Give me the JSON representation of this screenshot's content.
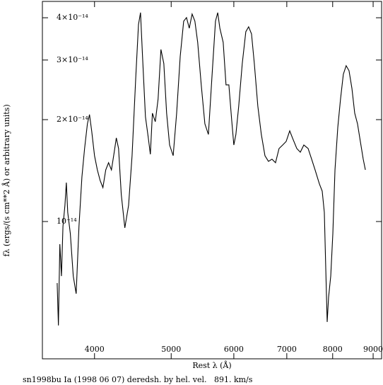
{
  "chart_data": {
    "type": "line",
    "xlabel": "Rest λ (Å)",
    "ylabel": "fλ (ergs/(s cm**2 Å) or arbitrary units)",
    "caption": "sn1998bu Ia (1998 06 07) deredsh. by hel. vel.   891. km/s",
    "xscale": "log",
    "yscale": "log",
    "xlim": [
      3437,
      9224
    ],
    "ylim": [
      3.93e-15,
      4.47e-14
    ],
    "xticks": [
      4000,
      5000,
      6000,
      7000,
      8000,
      9000
    ],
    "yticks": [
      {
        "value": 1e-14,
        "label": "10⁻¹⁴"
      },
      {
        "value": 2e-14,
        "label": "2×10⁻¹⁴"
      },
      {
        "value": 3e-14,
        "label": "3×10⁻¹⁴"
      },
      {
        "value": 4e-14,
        "label": "4×10⁻¹⁴"
      }
    ],
    "x": [
      3588,
      3601,
      3616,
      3633,
      3649,
      3670,
      3685,
      3700,
      3728,
      3760,
      3792,
      3823,
      3856,
      3886,
      3918,
      3942,
      3967,
      4000,
      4033,
      4066,
      4099,
      4133,
      4167,
      4202,
      4236,
      4262,
      4290,
      4324,
      4369,
      4417,
      4462,
      4510,
      4546,
      4573,
      4600,
      4639,
      4678,
      4706,
      4734,
      4774,
      4813,
      4853,
      4894,
      4934,
      4977,
      5029,
      5080,
      5133,
      5185,
      5228,
      5270,
      5314,
      5357,
      5401,
      5457,
      5515,
      5572,
      5629,
      5688,
      5725,
      5761,
      5817,
      5865,
      5914,
      5963,
      6000,
      6036,
      6086,
      6149,
      6213,
      6264,
      6317,
      6369,
      6434,
      6500,
      6569,
      6636,
      6705,
      6774,
      6844,
      6917,
      6987,
      7060,
      7117,
      7207,
      7281,
      7356,
      7448,
      7525,
      7601,
      7697,
      7760,
      7808,
      7841,
      7873,
      7905,
      7955,
      8004,
      8054,
      8120,
      8185,
      8252,
      8320,
      8390,
      8461,
      8530,
      8600,
      8671,
      8744,
      8799
    ],
    "series": [
      {
        "color": "#000000",
        "values": [
          6.58e-15,
          4.93e-15,
          8.57e-15,
          6.9e-15,
          9.67e-15,
          1.117e-14,
          1.303e-14,
          1.064e-14,
          9.21e-15,
          6.9e-15,
          6.12e-15,
          9.67e-15,
          1.355e-14,
          1.643e-14,
          1.944e-14,
          2.07e-14,
          1.853e-14,
          1.565e-14,
          1.421e-14,
          1.322e-14,
          1.26e-14,
          1.421e-14,
          1.492e-14,
          1.421e-14,
          1.603e-14,
          1.766e-14,
          1.643e-14,
          1.201e-14,
          9.58e-15,
          1.117e-14,
          1.565e-14,
          2.66e-14,
          3.816e-14,
          4.142e-14,
          3.073e-14,
          2.04e-14,
          1.766e-14,
          1.58e-14,
          2.09e-14,
          1.972e-14,
          2.301e-14,
          3.224e-14,
          2.928e-14,
          2.09e-14,
          1.683e-14,
          1.565e-14,
          2.09e-14,
          3.073e-14,
          3.908e-14,
          4.004e-14,
          3.725e-14,
          4.102e-14,
          3.908e-14,
          3.383e-14,
          2.534e-14,
          1.944e-14,
          1.808e-14,
          2.66e-14,
          3.908e-14,
          4.142e-14,
          3.725e-14,
          3.383e-14,
          2.534e-14,
          2.534e-14,
          1.992e-14,
          1.683e-14,
          1.808e-14,
          2.193e-14,
          2.928e-14,
          3.637e-14,
          3.761e-14,
          3.584e-14,
          2.928e-14,
          2.193e-14,
          1.808e-14,
          1.565e-14,
          1.506e-14,
          1.528e-14,
          1.492e-14,
          1.643e-14,
          1.683e-14,
          1.724e-14,
          1.853e-14,
          1.766e-14,
          1.643e-14,
          1.603e-14,
          1.683e-14,
          1.643e-14,
          1.528e-14,
          1.421e-14,
          1.291e-14,
          1.23e-14,
          1.064e-14,
          7.24e-15,
          5.05e-15,
          5.97e-15,
          6.9e-15,
          9.21e-15,
          1.421e-14,
          1.897e-14,
          2.301e-14,
          2.723e-14,
          2.886e-14,
          2.79e-14,
          2.474e-14,
          2.09e-14,
          1.944e-14,
          1.724e-14,
          1.528e-14,
          1.421e-14
        ]
      }
    ]
  }
}
